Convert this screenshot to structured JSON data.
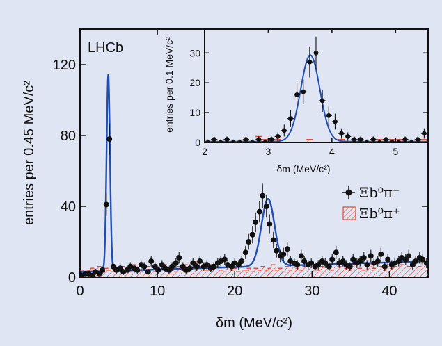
{
  "chart_data": [
    {
      "type": "scatter",
      "experiment_label": "LHCb",
      "xlabel": "δm (MeV/c²)",
      "ylabel": "entries per 0.45 MeV/c²",
      "xlim": [
        0,
        45
      ],
      "ylim": [
        0,
        140
      ],
      "xticks": [
        0,
        10,
        20,
        30,
        40
      ],
      "yticks": [
        0,
        40,
        80,
        120
      ],
      "legend_position": "right-middle",
      "colors": {
        "fit": "#1f4fb5",
        "background_hatch": "#e8472e",
        "data": "#111111"
      },
      "series": [
        {
          "name": "Ξb⁰π⁻",
          "kind": "data_points",
          "x": [
            0.2,
            0.7,
            1.1,
            1.6,
            2.0,
            2.5,
            2.9,
            3.4,
            3.8,
            4.3,
            4.7,
            5.2,
            5.6,
            6.1,
            6.5,
            7.0,
            7.4,
            7.9,
            8.3,
            8.8,
            9.2,
            9.7,
            10.1,
            10.6,
            11.0,
            11.5,
            11.9,
            12.4,
            12.8,
            13.3,
            13.7,
            14.2,
            14.6,
            15.1,
            15.5,
            16.0,
            16.4,
            16.9,
            17.3,
            17.8,
            18.2,
            18.7,
            19.1,
            19.6,
            20.0,
            20.5,
            20.9,
            21.4,
            21.8,
            22.3,
            22.7,
            23.2,
            23.6,
            24.1,
            24.5,
            25.0,
            25.4,
            25.9,
            26.3,
            26.8,
            27.2,
            27.7,
            28.1,
            28.6,
            29.0,
            29.5,
            29.9,
            30.4,
            30.8,
            31.3,
            31.7,
            32.2,
            32.6,
            33.1,
            33.5,
            34.0,
            34.4,
            34.9,
            35.3,
            35.8,
            36.2,
            36.7,
            37.1,
            37.6,
            38.0,
            38.5,
            38.9,
            39.4,
            39.8,
            40.3,
            40.7,
            41.2,
            41.6,
            42.1,
            42.5,
            43.0,
            43.4,
            43.9,
            44.3,
            44.8
          ],
          "y": [
            1,
            2,
            2,
            1,
            3,
            2,
            4,
            41,
            78,
            6,
            4,
            5,
            3,
            4,
            6,
            5,
            4,
            7,
            6,
            3,
            9,
            6,
            4,
            7,
            5,
            4,
            6,
            8,
            11,
            6,
            4,
            5,
            8,
            6,
            9,
            6,
            7,
            5,
            6,
            8,
            9,
            10,
            7,
            6,
            8,
            7,
            9,
            14,
            20,
            24,
            31,
            37,
            46,
            40,
            30,
            21,
            15,
            12,
            13,
            16,
            9,
            8,
            7,
            12,
            9,
            7,
            8,
            6,
            7,
            9,
            8,
            6,
            10,
            14,
            8,
            9,
            7,
            6,
            10,
            8,
            9,
            11,
            7,
            12,
            8,
            9,
            13,
            6,
            10,
            7,
            8,
            9,
            11,
            10,
            12,
            7,
            9,
            11,
            10,
            8
          ]
        },
        {
          "name": "Ξb⁰π⁺",
          "kind": "hatched_histogram",
          "x": [
            0.2,
            0.7,
            1.1,
            1.6,
            2.0,
            2.5,
            2.9,
            3.4,
            3.8,
            4.3,
            4.7,
            5.2,
            5.6,
            6.1,
            6.5,
            7.0,
            7.4,
            7.9,
            8.3,
            8.8,
            9.2,
            9.7,
            10.1,
            10.6,
            11.0,
            11.5,
            11.9,
            12.4,
            12.8,
            13.3,
            13.7,
            14.2,
            14.6,
            15.1,
            15.5,
            16.0,
            16.4,
            16.9,
            17.3,
            17.8,
            18.2,
            18.7,
            19.1,
            19.6,
            20.0,
            20.5,
            20.9,
            21.4,
            21.8,
            22.3,
            22.7,
            23.2,
            23.6,
            24.1,
            24.5,
            25.0,
            25.4,
            25.9,
            26.3,
            26.8,
            27.2,
            27.7,
            28.1,
            28.6,
            29.0,
            29.5,
            29.9,
            30.4,
            30.8,
            31.3,
            31.7,
            32.2,
            32.6,
            33.1,
            33.5,
            34.0,
            34.4,
            34.9,
            35.3,
            35.8,
            36.2,
            36.7,
            37.1,
            37.6,
            38.0,
            38.5,
            38.9,
            39.4,
            39.8,
            40.3,
            40.7,
            41.2,
            41.6,
            42.1,
            42.5,
            43.0,
            43.4,
            43.9,
            44.3,
            44.8
          ],
          "y": [
            4,
            3,
            4,
            5,
            4,
            6,
            3,
            5,
            4,
            3,
            5,
            4,
            6,
            5,
            3,
            7,
            4,
            3,
            5,
            6,
            4,
            3,
            5,
            4,
            7,
            5,
            4,
            3,
            6,
            4,
            7,
            5,
            8,
            9,
            6,
            5,
            4,
            7,
            5,
            6,
            4,
            3,
            7,
            4,
            5,
            3,
            6,
            4,
            5,
            3,
            5,
            4,
            6,
            4,
            5,
            7,
            4,
            5,
            3,
            6,
            4,
            7,
            5,
            4,
            6,
            8,
            7,
            5,
            4,
            6,
            7,
            5,
            4,
            7,
            6,
            8,
            5,
            4,
            7,
            9,
            5,
            4,
            6,
            7,
            5,
            8,
            6,
            4,
            7,
            5,
            6,
            8,
            7,
            9,
            6,
            7,
            8,
            6,
            9,
            8
          ]
        },
        {
          "name": "fit",
          "kind": "curve",
          "peaks": [
            {
              "mean": 3.65,
              "sigma": 0.22,
              "amplitude": 111
            },
            {
              "mean": 24.3,
              "sigma": 0.85,
              "amplitude": 38
            }
          ],
          "baseline": [
            3,
            9
          ]
        }
      ]
    },
    {
      "type": "scatter",
      "inset": true,
      "xlabel": "δm (MeV/c²)",
      "ylabel": "entries per 0.1 MeV/c²",
      "xlim": [
        2,
        5.5
      ],
      "ylim": [
        0,
        38
      ],
      "xticks": [
        2,
        3,
        4,
        5
      ],
      "yticks": [
        0,
        10,
        20,
        30
      ],
      "series": [
        {
          "name": "Ξb⁰π⁻",
          "kind": "data_points",
          "x": [
            2.05,
            2.15,
            2.25,
            2.35,
            2.45,
            2.55,
            2.65,
            2.75,
            2.85,
            2.95,
            3.05,
            3.15,
            3.25,
            3.35,
            3.45,
            3.55,
            3.65,
            3.75,
            3.85,
            3.95,
            4.05,
            4.15,
            4.25,
            4.35,
            4.45,
            4.55,
            4.65,
            4.75,
            4.85,
            4.95,
            5.05,
            5.15,
            5.25,
            5.35,
            5.45
          ],
          "y": [
            0,
            1,
            0,
            1,
            0,
            0,
            1,
            0,
            1,
            0,
            1,
            2,
            4,
            8,
            16,
            17,
            27,
            30,
            14,
            9,
            7,
            3,
            2,
            1,
            1,
            0,
            1,
            0,
            1,
            0,
            0,
            1,
            0,
            1,
            3
          ]
        },
        {
          "name": "Ξb⁰π⁺",
          "kind": "hatched_histogram",
          "x": [
            2.05,
            2.15,
            2.25,
            2.35,
            2.45,
            2.55,
            2.65,
            2.75,
            2.85,
            2.95,
            3.05,
            3.15,
            3.25,
            3.35,
            3.45,
            3.55,
            3.65,
            3.75,
            3.85,
            3.95,
            4.05,
            4.15,
            4.25,
            4.35,
            4.45,
            4.55,
            4.65,
            4.75,
            4.85,
            4.95,
            5.05,
            5.15,
            5.25,
            5.35,
            5.45
          ],
          "y": [
            0,
            1,
            0,
            1,
            0,
            0,
            1,
            0,
            2,
            1,
            0,
            1,
            0,
            0,
            0,
            0,
            1,
            0,
            0,
            0,
            0,
            1,
            0,
            0,
            0,
            0,
            0,
            1,
            0,
            1,
            1,
            1,
            0,
            1,
            1
          ]
        },
        {
          "name": "fit",
          "kind": "curve",
          "peaks": [
            {
              "mean": 3.66,
              "sigma": 0.15,
              "amplitude": 29
            }
          ],
          "baseline": [
            0.3,
            0.3
          ]
        }
      ]
    }
  ]
}
